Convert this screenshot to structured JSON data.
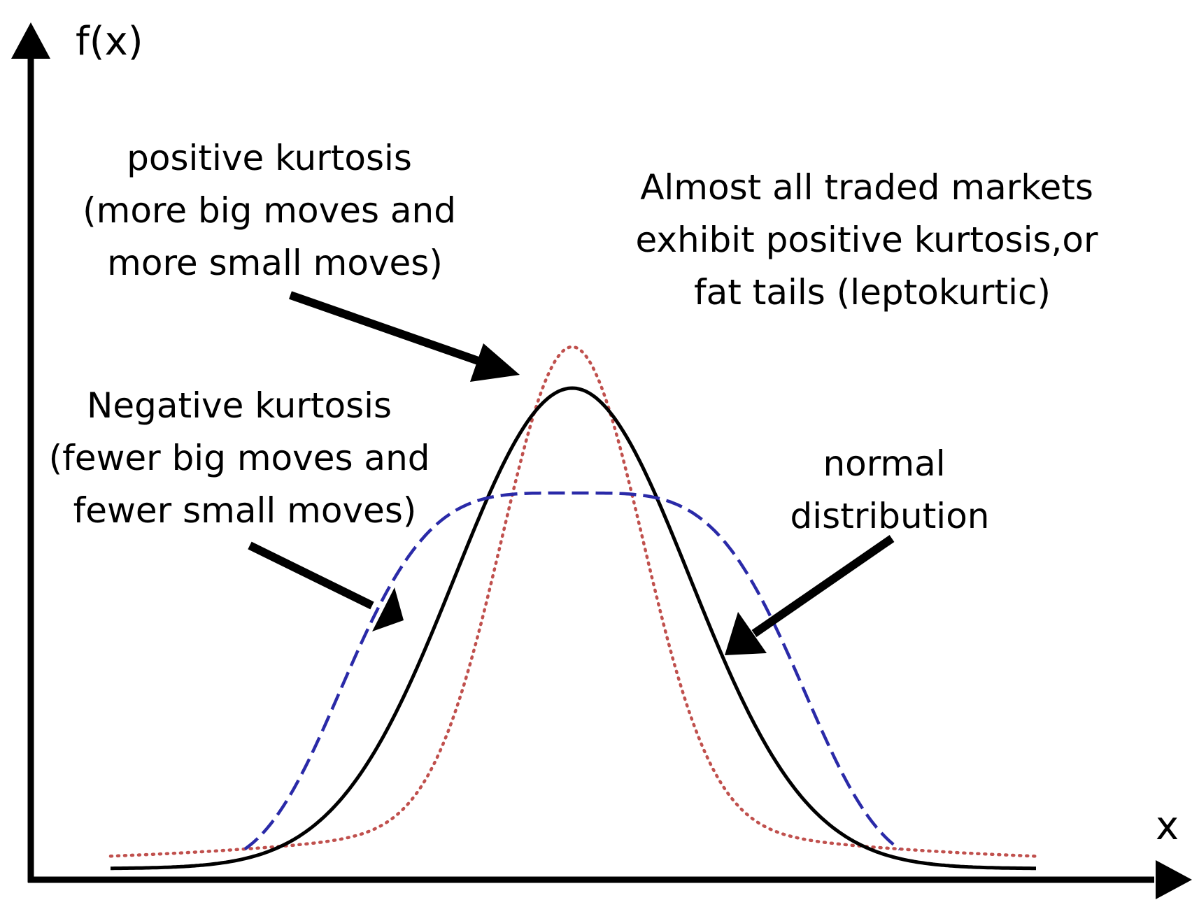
{
  "axes": {
    "y_label": "f(x)",
    "x_label": "x"
  },
  "annotations": {
    "positive": [
      "positive kurtosis",
      "(more big moves and",
      "more small moves)"
    ],
    "markets": [
      "Almost all traded markets",
      "exhibit positive kurtosis,or",
      "fat tails (leptokurtic)"
    ],
    "negative": [
      "Negative kurtosis",
      "(fewer big moves and",
      "fewer small moves)"
    ],
    "normal": [
      "normal",
      "distribution"
    ]
  },
  "curves": {
    "positive": {
      "style": "dotted",
      "color": "#c0504d"
    },
    "normal": {
      "style": "solid",
      "color": "#000000"
    },
    "negative": {
      "style": "dashed",
      "color": "#2a2aa8"
    }
  }
}
